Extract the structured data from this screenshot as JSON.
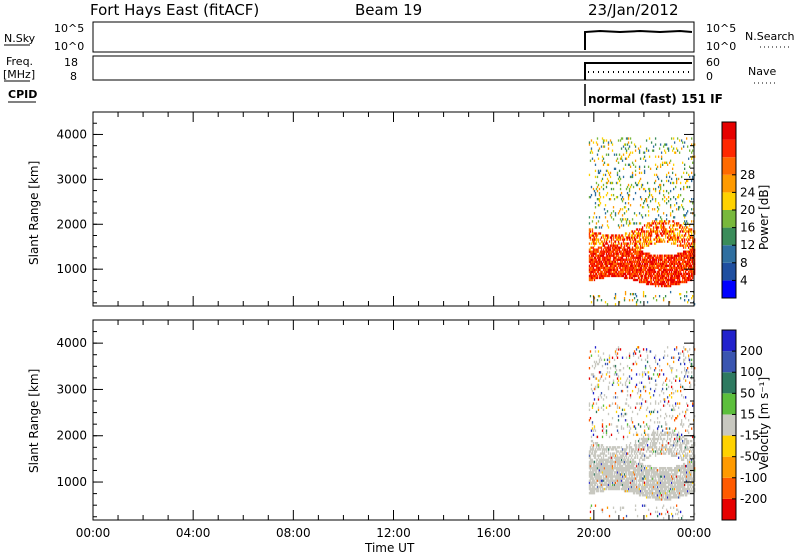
{
  "header": {
    "station": "Fort Hays East (fitACF)",
    "beam": "Beam 19",
    "date": "23/Jan/2012"
  },
  "strips": {
    "nsky": {
      "label": "N.Sky",
      "ticks": [
        "10^5",
        "10^0"
      ]
    },
    "nsearch": {
      "label": "N.Search",
      "ticks": [
        "10^5",
        "10^0"
      ]
    },
    "freq": {
      "label_top": "Freq.",
      "label_bottom": "[MHz]",
      "ticks": [
        "18",
        "8"
      ]
    },
    "nave": {
      "label": "Nave",
      "ticks": [
        "60",
        "0"
      ]
    },
    "cpid": {
      "label": "CPID",
      "mode_text": "normal (fast) 151 IF"
    }
  },
  "colors": {
    "power": [
      "#0000ff",
      "#1f4fa0",
      "#2f6fa0",
      "#3a8c5a",
      "#78b83c",
      "#ffd200",
      "#ff9a00",
      "#ff6a00",
      "#ff2800",
      "#e60000"
    ],
    "velocity": [
      "#2222cc",
      "#3a55b0",
      "#2e7a60",
      "#5cbf3c",
      "#c8c8c0",
      "#ffd200",
      "#ff9a00",
      "#ff5a00",
      "#e60000"
    ],
    "background": "#ffffff"
  },
  "chart_data": [
    {
      "type": "heatmap",
      "title": "",
      "xlabel": "",
      "ylabel": "Slant Range [km]",
      "xlim": [
        "00:00",
        "24:00"
      ],
      "ylim": [
        180,
        4500
      ],
      "x_ticks": [
        "00:00",
        "04:00",
        "08:00",
        "12:00",
        "16:00",
        "20:00",
        "00:00"
      ],
      "y_ticks": [
        1000,
        2000,
        3000,
        4000
      ],
      "data_window": {
        "start_hour": 19.8,
        "end_hour": 24.0
      },
      "colorbar": {
        "label": "Power [dB]",
        "ticks": [
          4,
          8,
          12,
          16,
          20,
          24,
          28
        ]
      },
      "scatter_bands": [
        {
          "name": "near-range strong",
          "range_km": [
            500,
            1400
          ],
          "power_db": 30
        },
        {
          "name": "mid-range",
          "range_km": [
            1300,
            2000
          ],
          "power_db": 26
        },
        {
          "name": "far-range weak",
          "range_km": [
            2000,
            3800
          ],
          "power_db": 12
        }
      ]
    },
    {
      "type": "heatmap",
      "title": "",
      "xlabel": "Time UT",
      "ylabel": "Slant Range [km]",
      "xlim": [
        "00:00",
        "24:00"
      ],
      "ylim": [
        180,
        4500
      ],
      "x_ticks": [
        "00:00",
        "04:00",
        "08:00",
        "12:00",
        "16:00",
        "20:00",
        "00:00"
      ],
      "y_ticks": [
        1000,
        2000,
        3000,
        4000
      ],
      "data_window": {
        "start_hour": 19.8,
        "end_hour": 24.0
      },
      "colorbar": {
        "label": "Velocity [m s⁻¹]",
        "ticks": [
          "200",
          "100",
          "50",
          "15",
          "-15",
          "-50",
          "-100",
          "-200"
        ]
      },
      "scatter_bands": [
        {
          "name": "ground scatter",
          "range_km": [
            500,
            2300
          ],
          "velocity": 0
        },
        {
          "name": "sparse ionospheric",
          "range_km": [
            2300,
            3800
          ],
          "velocity": -15
        }
      ]
    }
  ]
}
